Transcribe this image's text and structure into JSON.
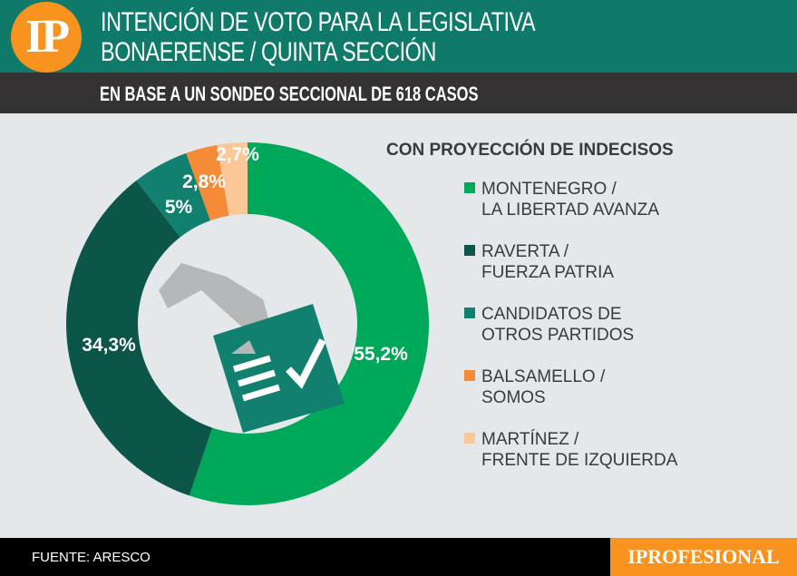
{
  "header": {
    "logo": "IP",
    "title_line1": "INTENCIÓN DE VOTO PARA LA LEGISLATIVA",
    "title_line2": "BONAERENSE / QUINTA SECCIÓN",
    "subtitle": "EN BASE A UN SONDEO SECCIONAL DE 618 CASOS"
  },
  "footer": {
    "source": "FUENTE: ARESCO",
    "brand": "IPROFESIONAL"
  },
  "chart_data": {
    "type": "pie",
    "donut": true,
    "title": "CON PROYECCIÓN DE INDECISOS",
    "legend_placement": "right",
    "slices": [
      {
        "name": "MONTENEGRO / LA LIBERTAD AVANZA",
        "line1": "MONTENEGRO /",
        "line2": "LA LIBERTAD AVANZA",
        "value": 55.2,
        "label": "55,2%",
        "color": "#00a859"
      },
      {
        "name": "RAVERTA / FUERZA PATRIA",
        "line1": "RAVERTA /",
        "line2": "FUERZA PATRIA",
        "value": 34.3,
        "label": "34,3%",
        "color": "#0c5549"
      },
      {
        "name": "CANDIDATOS DE OTROS PARTIDOS",
        "line1": "CANDIDATOS DE",
        "line2": "OTROS PARTIDOS",
        "value": 5,
        "label": "5%",
        "color": "#12806f"
      },
      {
        "name": "BALSAMELLO / SOMOS",
        "line1": "BALSAMELLO /",
        "line2": "SOMOS",
        "value": 2.8,
        "label": "2,8%",
        "color": "#f58b36"
      },
      {
        "name": "MARTÍNEZ / FRENTE DE IZQUIERDA",
        "line1": "MARTÍNEZ /",
        "line2": "FRENTE DE IZQUIERDA",
        "value": 2.7,
        "label": "2,7%",
        "color": "#fbc796"
      }
    ]
  }
}
